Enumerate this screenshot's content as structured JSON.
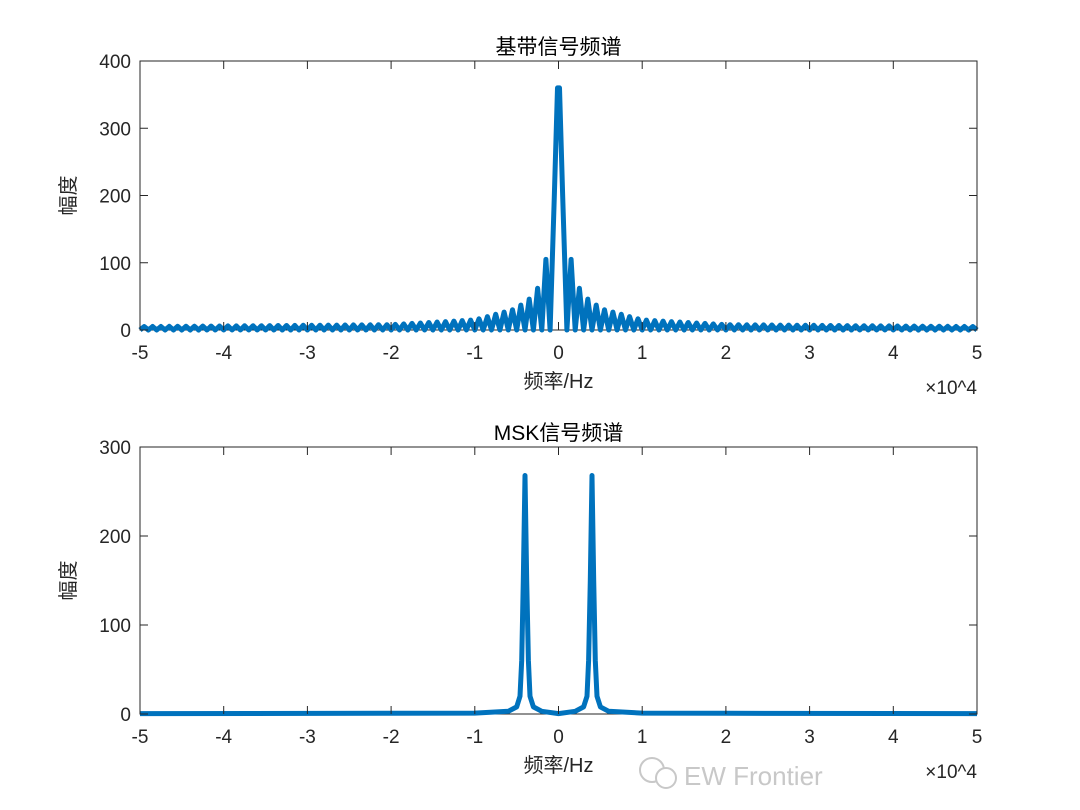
{
  "chart_data": [
    {
      "type": "line",
      "title": "基带信号频谱",
      "xlabel": "频率/Hz",
      "ylabel": "幅度",
      "x_exponent_label": "×10^4",
      "xlim": [
        -50000,
        50000
      ],
      "ylim": [
        0,
        400
      ],
      "xticks": [
        -5,
        -4,
        -3,
        -2,
        -1,
        0,
        1,
        2,
        3,
        4,
        5
      ],
      "xtick_labels": [
        "-5",
        "-4",
        "-3",
        "-2",
        "-1",
        "0",
        "1",
        "2",
        "3",
        "4",
        "5"
      ],
      "yticks": [
        0,
        100,
        200,
        300,
        400
      ],
      "ytick_labels": [
        "0",
        "100",
        "200",
        "300",
        "400"
      ],
      "grid": false,
      "color": "#0072BD",
      "series": [
        {
          "description_of_points": "lobe peak envelope (spectrum oscillates between 0 and these peaks, nulls every 1000 Hz)",
          "x": [
            -50000,
            -20000,
            -10000,
            -5500,
            -4500,
            -3500,
            -2500,
            -1500,
            0,
            1500,
            2500,
            3500,
            4500,
            5500,
            10000,
            20000,
            50000
          ],
          "y": [
            5,
            8,
            15,
            30,
            37,
            46,
            62,
            105,
            360,
            105,
            62,
            46,
            37,
            30,
            15,
            8,
            5
          ]
        }
      ]
    },
    {
      "type": "line",
      "title": "MSK信号频谱",
      "xlabel": "频率/Hz",
      "ylabel": "幅度",
      "x_exponent_label": "×10^4",
      "xlim": [
        -50000,
        50000
      ],
      "ylim": [
        0,
        300
      ],
      "xticks": [
        -5,
        -4,
        -3,
        -2,
        -1,
        0,
        1,
        2,
        3,
        4,
        5
      ],
      "xtick_labels": [
        "-5",
        "-4",
        "-3",
        "-2",
        "-1",
        "0",
        "1",
        "2",
        "3",
        "4",
        "5"
      ],
      "yticks": [
        0,
        100,
        200,
        300
      ],
      "ytick_labels": [
        "0",
        "100",
        "200",
        "300"
      ],
      "grid": false,
      "color": "#0072BD",
      "series": [
        {
          "x": [
            -50000,
            -20000,
            -10000,
            -6000,
            -5000,
            -4600,
            -4400,
            -4200,
            -4000,
            -3800,
            -3600,
            -3400,
            -3000,
            -2000,
            0,
            2000,
            3000,
            3400,
            3600,
            3800,
            4000,
            4200,
            4400,
            4600,
            5000,
            6000,
            10000,
            20000,
            50000
          ],
          "y": [
            0.5,
            0.8,
            1,
            3,
            8,
            20,
            60,
            150,
            268,
            150,
            60,
            20,
            8,
            3,
            0.5,
            3,
            8,
            20,
            60,
            150,
            268,
            150,
            60,
            20,
            8,
            3,
            1,
            0.8,
            0.5
          ]
        }
      ]
    }
  ],
  "watermark": "EW Frontier"
}
